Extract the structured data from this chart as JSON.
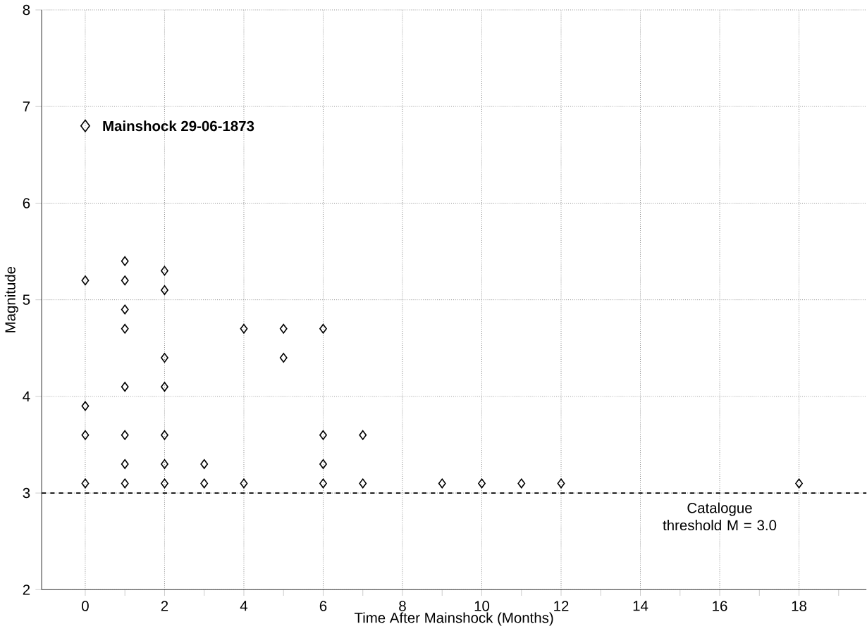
{
  "chart_data": {
    "type": "scatter",
    "xlabel": "Time After Mainshock (Months)",
    "ylabel": "Magnitude",
    "xlim": [
      -1.1,
      19.7
    ],
    "ylim": [
      2,
      8
    ],
    "xticks": [
      0,
      {
        "value": 1,
        "label": null
      },
      2,
      {
        "value": 3,
        "label": null
      },
      4,
      {
        "value": 5,
        "label": null
      },
      6,
      {
        "value": 7,
        "label": null
      },
      8,
      {
        "value": 9,
        "label": null
      },
      10,
      {
        "value": 11,
        "label": null
      },
      12,
      {
        "value": 13,
        "label": null
      },
      14,
      {
        "value": 15,
        "label": null
      },
      16,
      {
        "value": 17,
        "label": null
      },
      18,
      {
        "value": 19,
        "label": null
      }
    ],
    "yticks": [
      2,
      3,
      4,
      5,
      6,
      7,
      8
    ],
    "grid": true,
    "marker": "diamond",
    "series": [
      {
        "color": "#000000",
        "x": [
          0,
          0,
          0,
          0,
          1,
          1,
          1,
          1,
          1,
          1,
          1,
          1,
          2,
          2,
          2,
          2,
          2,
          2,
          2,
          3,
          3,
          4,
          4,
          5,
          5,
          6,
          6,
          6,
          6,
          7,
          7,
          9,
          10,
          11,
          12,
          18
        ],
        "values": [
          5.2,
          3.9,
          3.6,
          3.1,
          5.4,
          5.2,
          4.9,
          4.7,
          4.1,
          3.6,
          3.3,
          3.1,
          5.3,
          5.1,
          4.4,
          4.1,
          3.6,
          3.3,
          3.1,
          3.3,
          3.1,
          4.7,
          3.1,
          4.7,
          4.4,
          4.7,
          3.6,
          3.3,
          3.1,
          3.6,
          3.1,
          3.1,
          3.1,
          3.1,
          3.1,
          3.1
        ]
      },
      {
        "name": "Mainshock 29-06-1873",
        "color": "#000000",
        "x": [
          0
        ],
        "values": [
          6.8
        ]
      }
    ],
    "ref_lines": [
      {
        "axis": "y",
        "value": 3,
        "label": "Catalogue threshold M = 3.0",
        "line_style": "dashed",
        "color": "#000000"
      }
    ]
  }
}
